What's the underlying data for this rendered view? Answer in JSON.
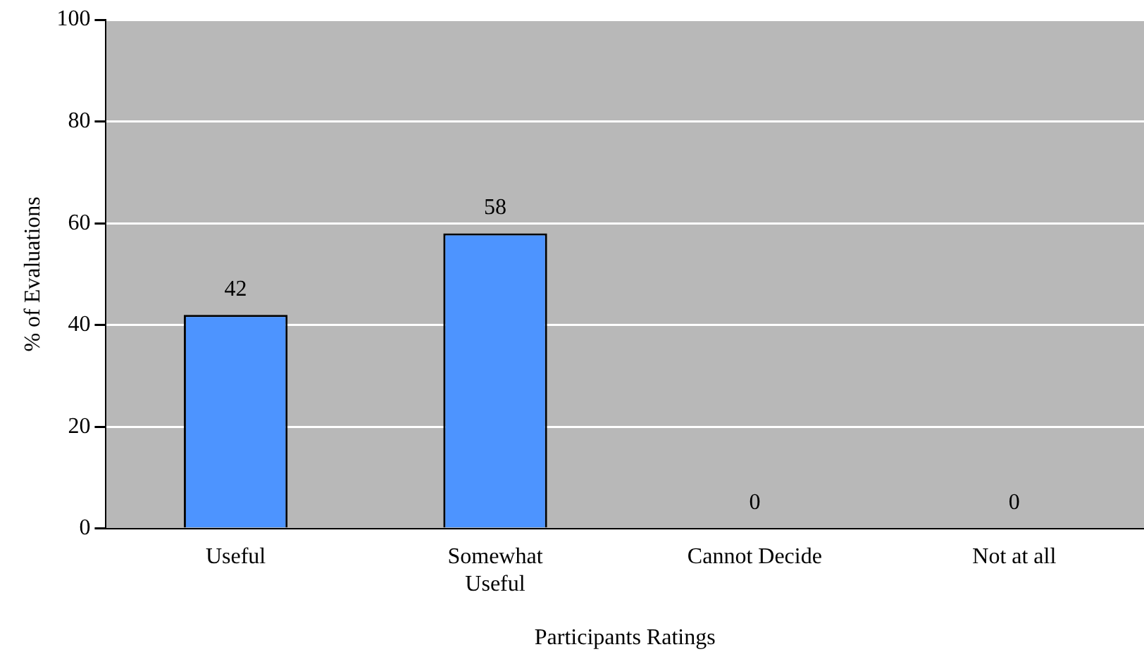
{
  "chart_data": {
    "type": "bar",
    "xlabel": "Participants Ratings",
    "ylabel": "% of Evaluations",
    "categories": [
      "Useful",
      "Somewhat Useful",
      "Cannot Decide",
      "Not at all"
    ],
    "values": [
      42,
      58,
      0,
      0
    ],
    "color": "#4d94ff",
    "ylim": [
      0,
      100
    ],
    "yticks": [
      0,
      20,
      40,
      60,
      80,
      100
    ],
    "grid": "y",
    "legend": false,
    "data_labels": true
  }
}
